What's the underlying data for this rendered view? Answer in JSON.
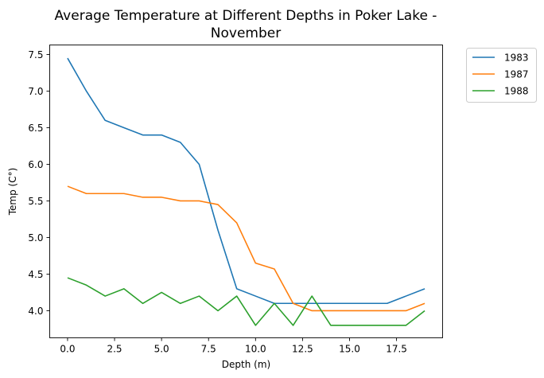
{
  "chart_data": {
    "type": "line",
    "title": "Average Temperature at Different Depths in Poker Lake - November",
    "title_lines": [
      "Average Temperature at Different Depths in Poker Lake -",
      "November"
    ],
    "xlabel": "Depth (m)",
    "ylabel": "Temp (C°)",
    "xlim": [
      -0.95,
      19.95
    ],
    "ylim": [
      3.63,
      7.63
    ],
    "xticks": [
      0.0,
      2.5,
      5.0,
      7.5,
      10.0,
      12.5,
      15.0,
      17.5
    ],
    "xtick_labels": [
      "0.0",
      "2.5",
      "5.0",
      "7.5",
      "10.0",
      "12.5",
      "15.0",
      "17.5"
    ],
    "yticks": [
      4.0,
      4.5,
      5.0,
      5.5,
      6.0,
      6.5,
      7.0,
      7.5
    ],
    "ytick_labels": [
      "4.0",
      "4.5",
      "5.0",
      "5.5",
      "6.0",
      "6.5",
      "7.0",
      "7.5"
    ],
    "grid": false,
    "legend_position": "outside-top-right",
    "x": [
      0,
      1,
      2,
      3,
      4,
      5,
      6,
      7,
      8,
      9,
      10,
      11,
      12,
      13,
      14,
      15,
      16,
      17,
      18,
      19
    ],
    "series": [
      {
        "name": "1983",
        "color": "#1f77b4",
        "values": [
          7.45,
          7.0,
          6.6,
          6.5,
          6.4,
          6.4,
          6.3,
          6.0,
          5.1,
          4.3,
          4.2,
          4.1,
          4.1,
          4.1,
          4.1,
          4.1,
          4.1,
          4.1,
          4.2,
          4.3
        ]
      },
      {
        "name": "1987",
        "color": "#ff7f0e",
        "values": [
          5.7,
          5.6,
          5.6,
          5.6,
          5.55,
          5.55,
          5.5,
          5.5,
          5.45,
          5.2,
          4.65,
          4.57,
          4.1,
          4.0,
          4.0,
          4.0,
          4.0,
          4.0,
          4.0,
          4.1
        ]
      },
      {
        "name": "1988",
        "color": "#2ca02c",
        "values": [
          4.45,
          4.35,
          4.2,
          4.3,
          4.1,
          4.25,
          4.1,
          4.2,
          4.0,
          4.2,
          3.8,
          4.1,
          3.8,
          4.2,
          3.8,
          3.8,
          3.8,
          3.8,
          3.8,
          4.0
        ]
      }
    ]
  }
}
